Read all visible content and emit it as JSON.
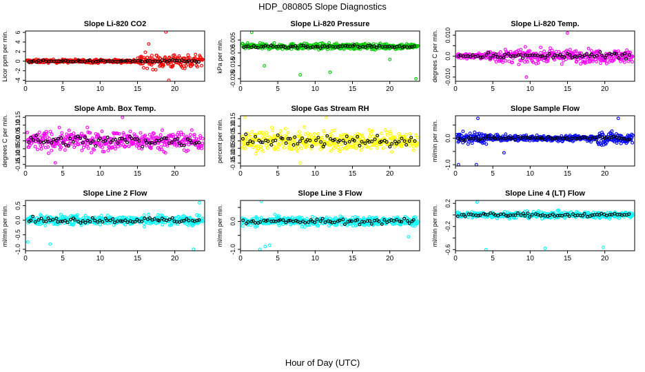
{
  "figure": {
    "title": "HDP_080805  Slope Diagnostics",
    "xlabel": "Hour of Day (UTC)"
  },
  "chart_data": [
    {
      "type": "scatter",
      "title": "Slope Li-820 CO2",
      "ylabel": "Licor ppm per min.",
      "color": "#ff0000",
      "xlim": [
        0,
        24
      ],
      "ylim": [
        -4.2,
        6.3
      ],
      "xticks": [
        0,
        5,
        10,
        15,
        20
      ],
      "yticks": [
        -4,
        -2,
        0,
        2,
        4,
        6
      ],
      "yticklabels": [
        "-4",
        "-2",
        "0",
        "2",
        "4",
        "6"
      ],
      "noise": 0.35,
      "spread_scale": [
        [
          0,
          15,
          1
        ],
        [
          15,
          24,
          4
        ]
      ],
      "outliers": [
        [
          18.8,
          6.1
        ],
        [
          19.2,
          -4.0
        ],
        [
          16.5,
          3.6
        ]
      ]
    },
    {
      "type": "scatter",
      "title": "Slope Li-820 Pressure",
      "ylabel": "kPa per min.",
      "color": "#00cc00",
      "xlim": [
        0,
        24
      ],
      "ylim": [
        -0.027,
        0.012
      ],
      "xticks": [
        0,
        5,
        10,
        15,
        20
      ],
      "yticks": [
        -0.025,
        -0.015,
        -0.005,
        0.005
      ],
      "yticklabels": [
        "-0.025",
        "-0.015",
        "-0.005",
        "0.005"
      ],
      "noise": 0.0022,
      "spread_scale": [
        [
          0,
          24,
          1
        ]
      ],
      "outliers": [
        [
          1.5,
          0.011
        ],
        [
          3.2,
          -0.015
        ],
        [
          8.0,
          -0.022
        ],
        [
          12.0,
          -0.02
        ],
        [
          20.0,
          -0.01
        ],
        [
          23.5,
          -0.025
        ]
      ]
    },
    {
      "type": "scatter",
      "title": "Slope Li-820 Temp.",
      "ylabel": "degrees C per min.",
      "color": "#ff00ff",
      "xlim": [
        0,
        24
      ],
      "ylim": [
        -0.012,
        0.012
      ],
      "xticks": [
        0,
        5,
        10,
        15,
        20
      ],
      "yticks": [
        -0.01,
        -0.005,
        0.0,
        0.005,
        0.01
      ],
      "yticklabels": [
        "-0.010",
        "",
        "0.0",
        "",
        "0.010"
      ],
      "noise": 0.003,
      "spread_scale": [
        [
          0,
          4,
          0.4
        ],
        [
          4,
          24,
          1
        ]
      ],
      "outliers": [
        [
          15.0,
          0.011
        ],
        [
          9.5,
          -0.01
        ]
      ]
    },
    {
      "type": "scatter",
      "title": "Slope Amb. Box Temp.",
      "ylabel": "degrees C per min.",
      "color": "#ff00ff",
      "xlim": [
        0,
        24
      ],
      "ylim": [
        -0.16,
        0.16
      ],
      "xticks": [
        0,
        5,
        10,
        15,
        20
      ],
      "yticks": [
        -0.15,
        -0.1,
        -0.05,
        0.0,
        0.05,
        0.1,
        0.15
      ],
      "yticklabels": [
        "-0.15",
        "-0.10",
        "-0.05",
        "0.00",
        "0.05",
        "0.10",
        "0.15"
      ],
      "noise": 0.06,
      "spread_scale": [
        [
          0,
          24,
          1
        ]
      ],
      "outliers": [
        [
          13.0,
          0.15
        ],
        [
          4.0,
          -0.14
        ]
      ]
    },
    {
      "type": "scatter",
      "title": "Slope Gas Stream RH",
      "ylabel": "percent per min.",
      "color": "#ffff00",
      "xlim": [
        0,
        24
      ],
      "ylim": [
        -0.17,
        0.17
      ],
      "xticks": [
        0,
        5,
        10,
        15,
        20
      ],
      "yticks": [
        -0.15,
        -0.1,
        -0.05,
        0.0,
        0.05,
        0.1,
        0.15
      ],
      "yticklabels": [
        "-0.15",
        "-0.10",
        "-0.05",
        "0.00",
        "0.05",
        "0.10",
        "0.15"
      ],
      "noise": 0.065,
      "spread_scale": [
        [
          0,
          24,
          1
        ]
      ],
      "outliers": [
        [
          0.6,
          0.16
        ],
        [
          11.5,
          0.16
        ],
        [
          8.0,
          -0.15
        ]
      ]
    },
    {
      "type": "scatter",
      "title": "Slope Sample Flow",
      "ylabel": "ml/min per min.",
      "color": "#0000ff",
      "xlim": [
        0,
        24
      ],
      "ylim": [
        -1.05,
        0.85
      ],
      "xticks": [
        0,
        5,
        10,
        15,
        20
      ],
      "yticks": [
        -1.0,
        -0.5,
        0.0,
        0.5
      ],
      "yticklabels": [
        "-1.0",
        "",
        "0.0",
        ""
      ],
      "noise": 0.13,
      "spread_scale": [
        [
          0,
          5,
          1.6
        ],
        [
          5,
          19,
          0.8
        ],
        [
          19,
          24,
          1.8
        ]
      ],
      "outliers": [
        [
          0.4,
          -1.0
        ],
        [
          3.0,
          0.75
        ],
        [
          2.8,
          -1.0
        ],
        [
          21.8,
          0.75
        ],
        [
          6.5,
          -0.55
        ]
      ]
    },
    {
      "type": "scatter",
      "title": "Slope Line 2 Flow",
      "ylabel": "ml/min per min.",
      "color": "#00ffff",
      "xlim": [
        0,
        24
      ],
      "ylim": [
        -1.05,
        0.68
      ],
      "xticks": [
        0,
        5,
        10,
        15,
        20
      ],
      "yticks": [
        -1.0,
        -0.5,
        0.0,
        0.5
      ],
      "yticklabels": [
        "-1.0",
        "-0.5",
        "0.0",
        "0.5"
      ],
      "noise": 0.16,
      "spread_scale": [
        [
          0,
          24,
          1
        ]
      ],
      "outliers": [
        [
          0.3,
          -0.75
        ],
        [
          3.3,
          -0.82
        ],
        [
          22.5,
          -1.0
        ],
        [
          23.3,
          0.6
        ]
      ]
    },
    {
      "type": "scatter",
      "title": "Slope Line 3 Flow",
      "ylabel": "ml/min per min.",
      "color": "#00ffff",
      "xlim": [
        0,
        24
      ],
      "ylim": [
        -1.05,
        0.75
      ],
      "xticks": [
        0,
        5,
        10,
        15,
        20
      ],
      "yticks": [
        -1.0,
        -0.5,
        0.0,
        0.5
      ],
      "yticklabels": [
        "-1.0",
        "",
        "0.0",
        ""
      ],
      "noise": 0.16,
      "spread_scale": [
        [
          0,
          24,
          1
        ]
      ],
      "outliers": [
        [
          2.8,
          0.72
        ],
        [
          2.6,
          -1.0
        ],
        [
          3.3,
          -0.9
        ],
        [
          3.9,
          -0.85
        ],
        [
          22.5,
          -0.55
        ]
      ]
    },
    {
      "type": "scatter",
      "title": "Slope Line 4 (LT) Flow",
      "ylabel": "ml/min per min.",
      "color": "#00ffff",
      "xlim": [
        0,
        24
      ],
      "ylim": [
        -0.62,
        0.25
      ],
      "xticks": [
        0,
        5,
        10,
        15,
        20
      ],
      "yticks": [
        -0.6,
        -0.4,
        -0.2,
        0.0,
        0.2
      ],
      "yticklabels": [
        "-0.6",
        "",
        "-0.2",
        "",
        "0.2"
      ],
      "noise": 0.055,
      "spread_scale": [
        [
          0,
          24,
          1
        ]
      ],
      "outliers": [
        [
          4.1,
          -0.6
        ],
        [
          12.0,
          -0.58
        ],
        [
          19.8,
          -0.56
        ],
        [
          2.9,
          0.22
        ]
      ]
    }
  ]
}
